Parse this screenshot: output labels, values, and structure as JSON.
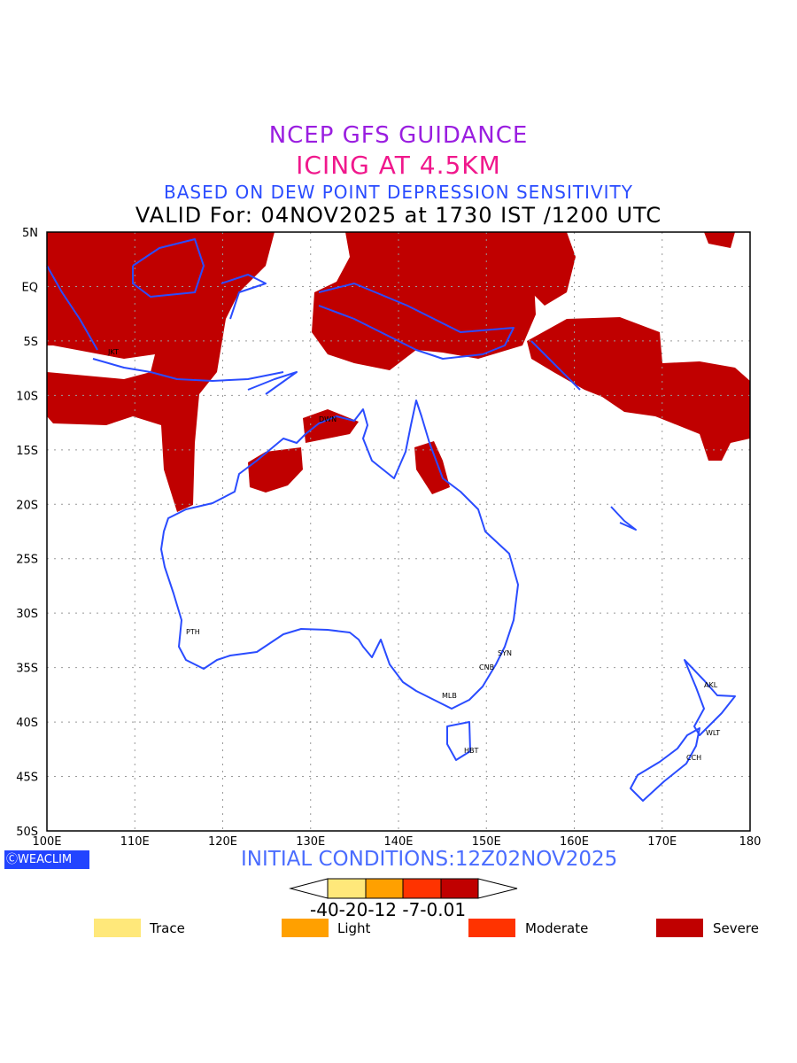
{
  "title": {
    "line1": "NCEP GFS GUIDANCE",
    "line2": "ICING AT 4.5KM",
    "line3": "BASED ON DEW POINT DEPRESSION SENSITIVITY",
    "line4": "VALID For: 04NOV2025 at 1730 IST /1200 UTC"
  },
  "map": {
    "lat_ticks": [
      "5N",
      "EQ",
      "5S",
      "10S",
      "15S",
      "20S",
      "25S",
      "30S",
      "35S",
      "40S",
      "45S",
      "50S"
    ],
    "lon_ticks": [
      "100E",
      "110E",
      "120E",
      "130E",
      "140E",
      "150E",
      "160E",
      "170E",
      "180"
    ],
    "lon_range": [
      100,
      180
    ],
    "lat_range": [
      -50,
      5
    ],
    "cities": [
      "JKT",
      "DWN",
      "PTH",
      "SYN",
      "CNB",
      "MLB",
      "HBT",
      "AKL",
      "WLT",
      "CCH"
    ],
    "coast_color": "#2a4cff",
    "icing_color": "#c00000"
  },
  "footer": {
    "logo": "WEACLIM",
    "initial_conditions": "INITIAL CONDITIONS:12Z02NOV2025"
  },
  "colorbar": {
    "labels": "-40-20-12 -7-0.01",
    "colors": [
      "#ffe87a",
      "#ffa000",
      "#ff3300",
      "#c00000"
    ]
  },
  "legend": [
    {
      "label": "Trace",
      "color": "#ffe87a"
    },
    {
      "label": "Light",
      "color": "#ffa000"
    },
    {
      "label": "Moderate",
      "color": "#ff3300"
    },
    {
      "label": "Severe",
      "color": "#c00000"
    }
  ]
}
